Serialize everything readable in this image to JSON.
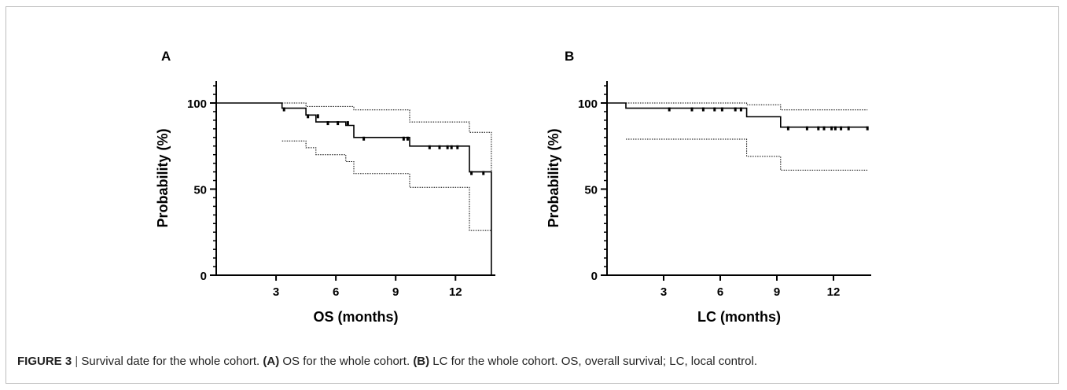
{
  "chart_data": [
    {
      "panel": "A",
      "type": "line",
      "xlabel": "OS (months)",
      "ylabel": "Probability (%)",
      "xlim": [
        0,
        14
      ],
      "ylim": [
        0,
        100
      ],
      "x_ticks": [
        3,
        6,
        9,
        12
      ],
      "y_ticks": [
        0,
        50,
        100
      ],
      "series": [
        {
          "role": "estimate",
          "points": [
            [
              0,
              100
            ],
            [
              3.3,
              100
            ],
            [
              3.3,
              97
            ],
            [
              4.5,
              97
            ],
            [
              4.5,
              93
            ],
            [
              5.0,
              93
            ],
            [
              5.0,
              89
            ],
            [
              6.5,
              89
            ],
            [
              6.5,
              87
            ],
            [
              6.9,
              87
            ],
            [
              6.9,
              80
            ],
            [
              9.7,
              80
            ],
            [
              9.7,
              75
            ],
            [
              12.7,
              75
            ],
            [
              12.7,
              60
            ],
            [
              13.8,
              60
            ],
            [
              13.8,
              0
            ]
          ]
        },
        {
          "role": "upper-ci",
          "points": [
            [
              3.3,
              100
            ],
            [
              4.5,
              100
            ],
            [
              4.5,
              98
            ],
            [
              6.9,
              98
            ],
            [
              6.9,
              96
            ],
            [
              9.7,
              96
            ],
            [
              9.7,
              89
            ],
            [
              12.7,
              89
            ],
            [
              12.7,
              83
            ],
            [
              13.8,
              83
            ],
            [
              13.8,
              60
            ]
          ]
        },
        {
          "role": "lower-ci",
          "points": [
            [
              3.3,
              78
            ],
            [
              4.5,
              78
            ],
            [
              4.5,
              74
            ],
            [
              5.0,
              74
            ],
            [
              5.0,
              70
            ],
            [
              6.5,
              70
            ],
            [
              6.5,
              66
            ],
            [
              6.9,
              66
            ],
            [
              6.9,
              59
            ],
            [
              9.7,
              59
            ],
            [
              9.7,
              51
            ],
            [
              12.7,
              51
            ],
            [
              12.7,
              26
            ],
            [
              13.8,
              26
            ]
          ]
        }
      ],
      "censored": [
        [
          3.4,
          97
        ],
        [
          4.6,
          93
        ],
        [
          5.1,
          93
        ],
        [
          5.6,
          89
        ],
        [
          6.1,
          89
        ],
        [
          6.6,
          89
        ],
        [
          7.4,
          80
        ],
        [
          9.4,
          80
        ],
        [
          9.6,
          80
        ],
        [
          10.7,
          75
        ],
        [
          11.2,
          75
        ],
        [
          11.6,
          75
        ],
        [
          11.8,
          75
        ],
        [
          12.1,
          75
        ],
        [
          12.8,
          60
        ],
        [
          13.4,
          60
        ]
      ]
    },
    {
      "panel": "B",
      "type": "line",
      "xlabel": "LC (months)",
      "ylabel": "Probability (%)",
      "xlim": [
        0,
        14
      ],
      "ylim": [
        0,
        100
      ],
      "x_ticks": [
        3,
        6,
        9,
        12
      ],
      "y_ticks": [
        0,
        50,
        100
      ],
      "series": [
        {
          "role": "estimate",
          "points": [
            [
              0,
              100
            ],
            [
              1.0,
              100
            ],
            [
              1.0,
              97
            ],
            [
              7.4,
              97
            ],
            [
              7.4,
              92
            ],
            [
              9.2,
              92
            ],
            [
              9.2,
              86
            ],
            [
              13.8,
              86
            ]
          ]
        },
        {
          "role": "upper-ci",
          "points": [
            [
              1.0,
              100
            ],
            [
              7.4,
              100
            ],
            [
              7.4,
              99
            ],
            [
              9.2,
              99
            ],
            [
              9.2,
              96
            ],
            [
              13.8,
              96
            ]
          ]
        },
        {
          "role": "lower-ci",
          "points": [
            [
              1.0,
              79
            ],
            [
              7.4,
              79
            ],
            [
              7.4,
              69
            ],
            [
              9.2,
              69
            ],
            [
              9.2,
              61
            ],
            [
              13.8,
              61
            ]
          ]
        }
      ],
      "censored": [
        [
          3.3,
          97
        ],
        [
          4.5,
          97
        ],
        [
          5.1,
          97
        ],
        [
          5.7,
          97
        ],
        [
          6.1,
          97
        ],
        [
          6.8,
          97
        ],
        [
          7.1,
          97
        ],
        [
          9.6,
          86
        ],
        [
          10.6,
          86
        ],
        [
          11.2,
          86
        ],
        [
          11.5,
          86
        ],
        [
          11.9,
          86
        ],
        [
          12.1,
          86
        ],
        [
          12.4,
          86
        ],
        [
          12.8,
          86
        ],
        [
          13.8,
          86
        ]
      ]
    }
  ],
  "panels": {
    "a_letter": "A",
    "b_letter": "B"
  },
  "caption": {
    "figure_label": "FIGURE 3",
    "separator": " | ",
    "text_1": "Survival date for the whole cohort. ",
    "label_a": "(A)",
    "text_2": " OS for the whole cohort. ",
    "label_b": "(B)",
    "text_3": " LC for the whole cohort. OS, overall survival; LC, local control."
  },
  "colors": {
    "line": "#000000",
    "frame": "#bdbdbd"
  }
}
